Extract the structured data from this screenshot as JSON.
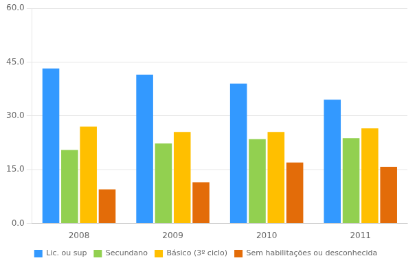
{
  "chart_data": {
    "type": "bar",
    "categories": [
      "2008",
      "2009",
      "2010",
      "2011"
    ],
    "series": [
      {
        "name": "Lic. ou sup",
        "color": "#3399FF",
        "values": [
          43.2,
          41.5,
          39.0,
          34.5
        ]
      },
      {
        "name": "Secundano",
        "color": "#92D050",
        "values": [
          20.5,
          22.3,
          23.5,
          23.8
        ]
      },
      {
        "name": "Básico (3º ciclo)",
        "color": "#FFBF00",
        "values": [
          27.0,
          25.5,
          25.5,
          26.5
        ]
      },
      {
        "name": "Sem habilitações ou desconhecida",
        "color": "#E36C09",
        "values": [
          9.5,
          11.5,
          17.0,
          15.8
        ]
      }
    ],
    "ylim": [
      0,
      60
    ],
    "yticks": [
      {
        "value": 0,
        "label": "0.0"
      },
      {
        "value": 15,
        "label": "15.0"
      },
      {
        "value": 30,
        "label": "30.0"
      },
      {
        "value": 45,
        "label": "45.0"
      },
      {
        "value": 60,
        "label": "60.0"
      }
    ],
    "grid": true,
    "legend": "bottom"
  }
}
